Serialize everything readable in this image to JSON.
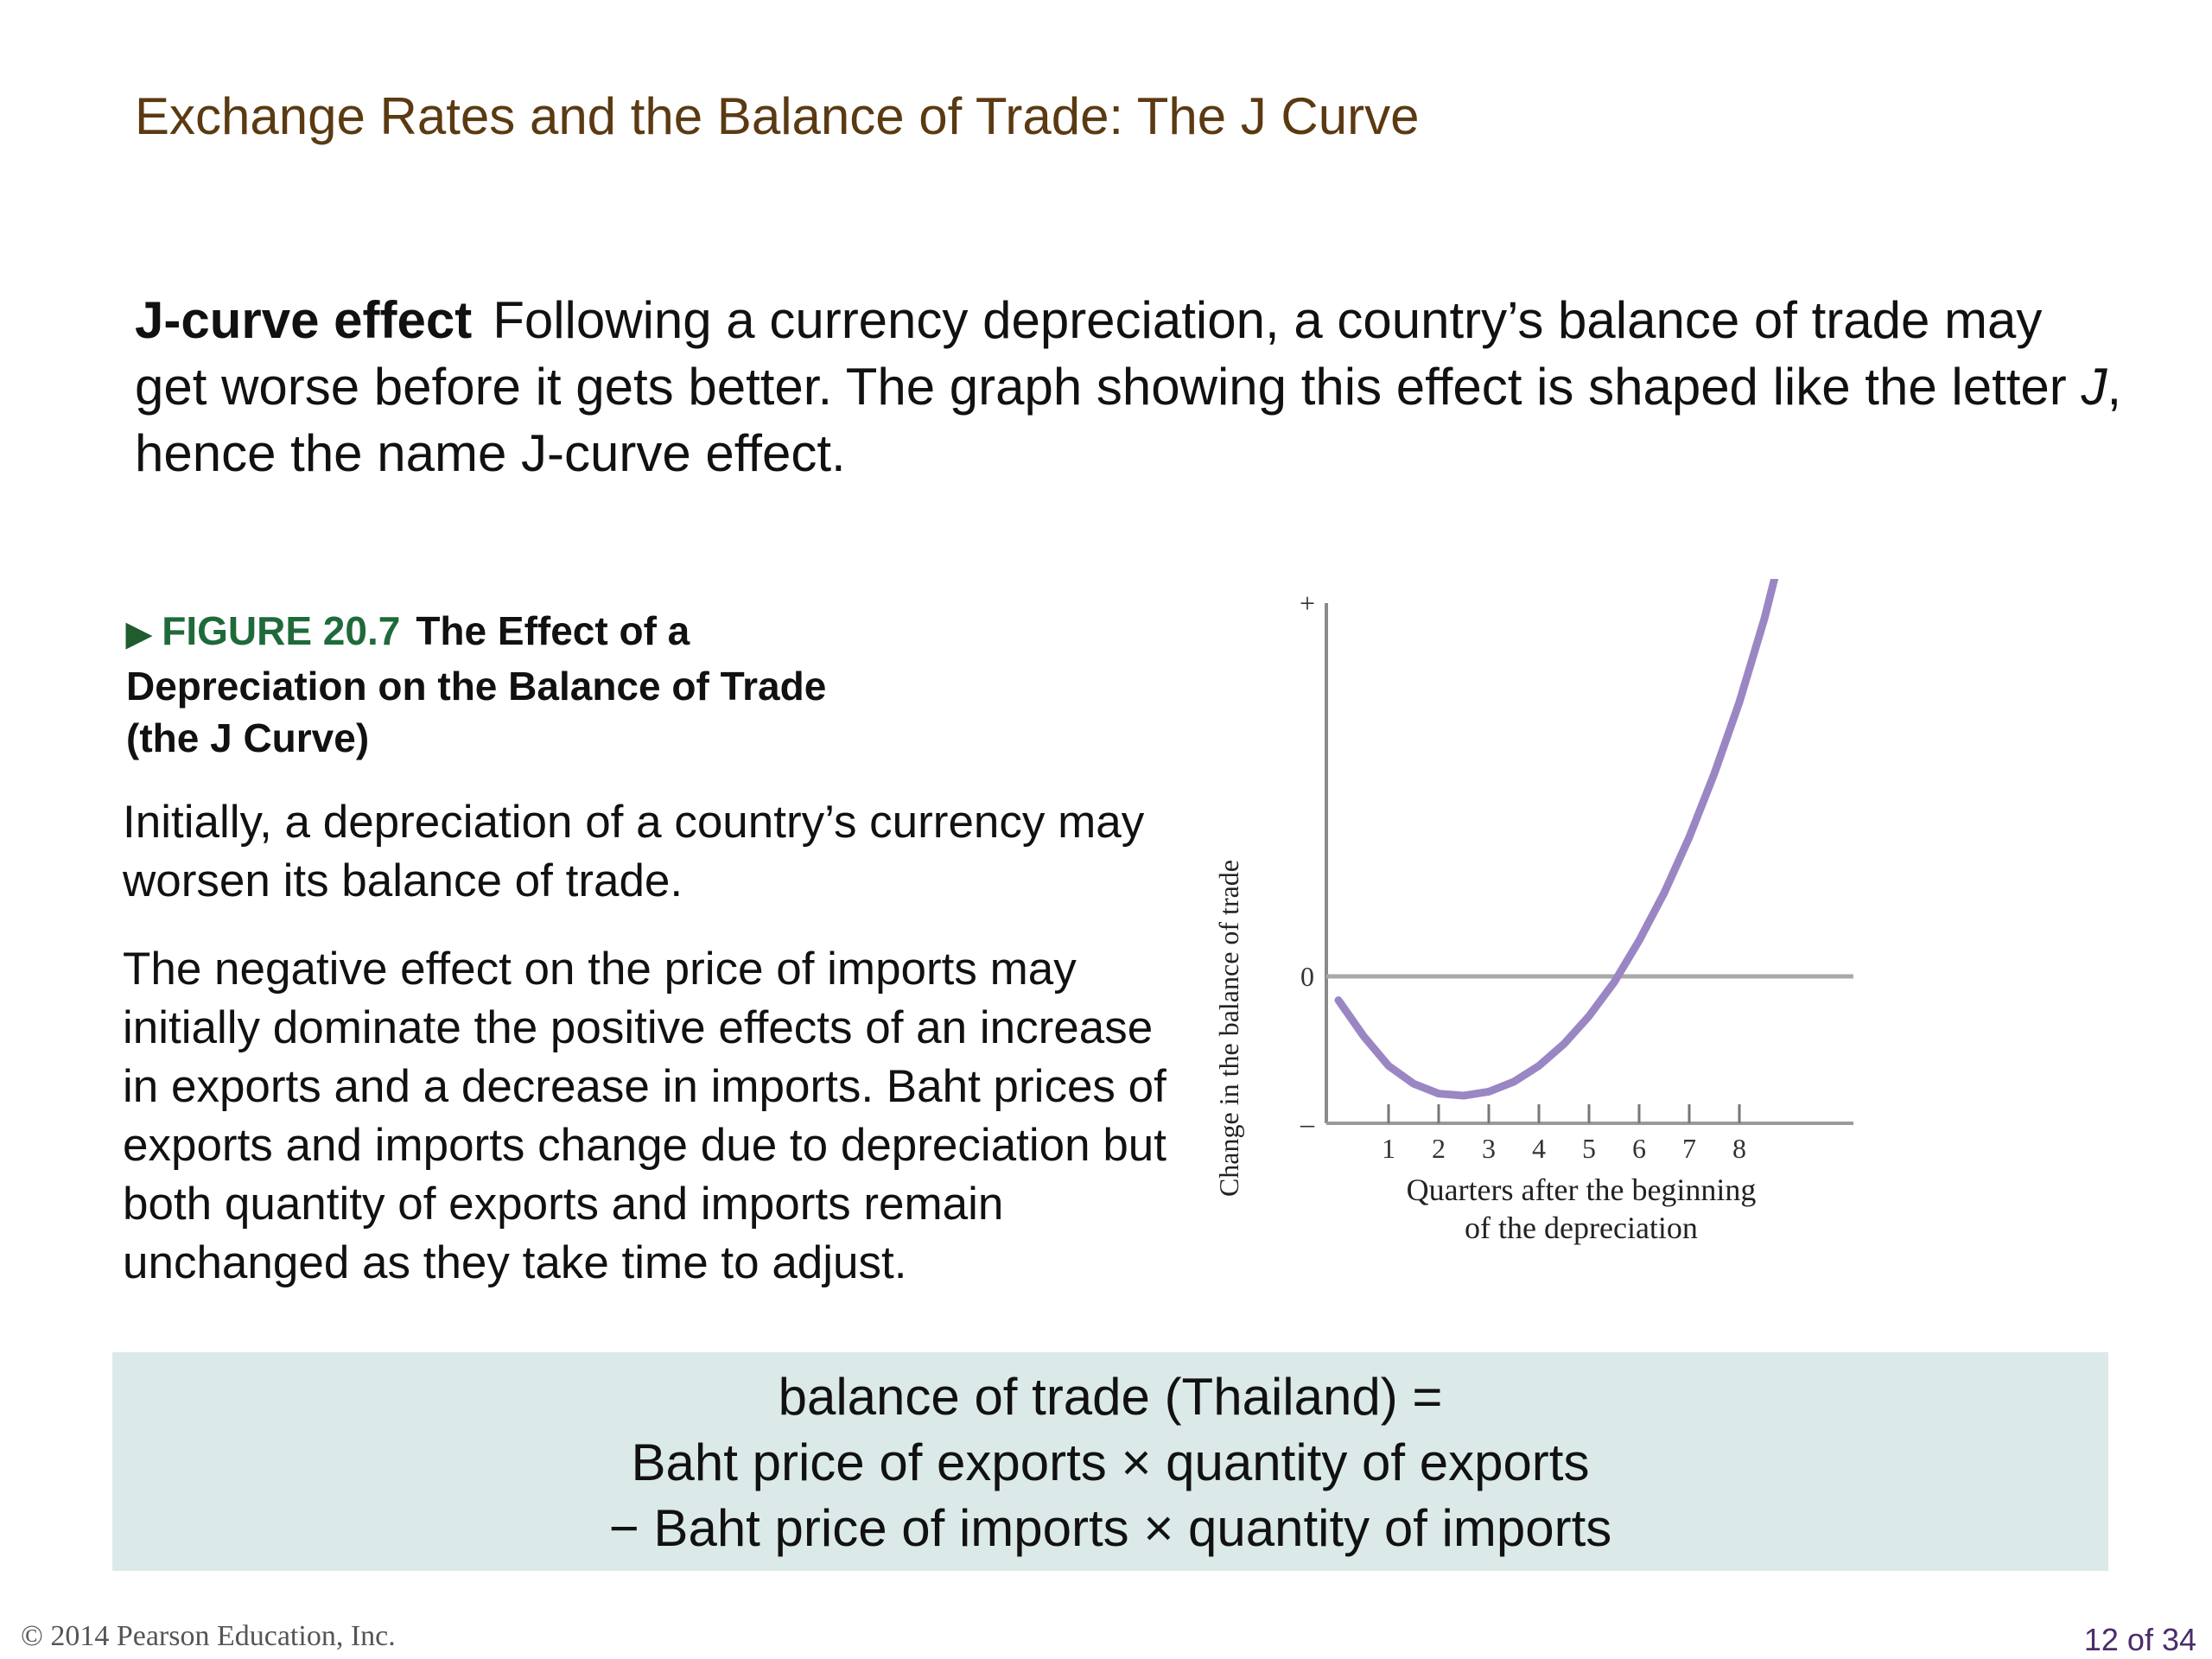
{
  "slide": {
    "title": "Exchange Rates and the Balance of Trade: The J Curve",
    "definition_term": "J-curve effect",
    "definition_text_1": "Following a currency depreciation, a country’s balance of trade may get worse before it gets better. The graph showing this effect is shaped like the letter ",
    "definition_italic": "J",
    "definition_text_2": ", hence the name J-curve effect."
  },
  "figure": {
    "arrow": "▶",
    "number": "FIGURE 20.7",
    "title": "The Effect of a Depreciation on the Balance of Trade (the J Curve)",
    "para1": "Initially, a depreciation of a country’s currency may worsen its balance of trade.",
    "para2": "The negative effect on the price of imports may initially dominate the positive effects of an increase in exports and a decrease in imports. Baht prices of exports and imports change due to depreciation but both quantity of exports and imports remain unchanged as they take time to adjust."
  },
  "chart_data": {
    "type": "line",
    "title": "",
    "xlabel": "Quarters after the beginning of the depreciation",
    "xlabel_line1": "Quarters after the beginning",
    "xlabel_line2": "of the depreciation",
    "ylabel": "Change in the balance of trade",
    "x_ticks": [
      "1",
      "2",
      "3",
      "4",
      "5",
      "6",
      "7",
      "8"
    ],
    "y_ticks": [
      "+",
      "0",
      "–"
    ],
    "xlim": [
      0,
      10
    ],
    "ylim": [
      -1,
      2.4
    ],
    "curve_color": "#9b86c4",
    "series": [
      {
        "x": [
          0,
          0.5,
          1,
          1.5,
          2,
          2.5,
          3,
          3.5,
          4,
          4.5,
          5,
          5.5,
          6,
          6.5,
          7,
          7.5,
          8,
          8.5,
          8.8
        ],
        "y": [
          -0.12,
          -0.3,
          -0.45,
          -0.54,
          -0.59,
          -0.6,
          -0.58,
          -0.53,
          -0.45,
          -0.34,
          -0.2,
          -0.03,
          0.18,
          0.42,
          0.7,
          1.02,
          1.38,
          1.8,
          2.1
        ]
      }
    ]
  },
  "formula": {
    "line1": "balance of trade (Thailand) =",
    "line2": "Baht price of exports × quantity of exports",
    "line3": "− Baht price of imports × quantity of imports"
  },
  "footer": {
    "copyright": "© 2014 Pearson Education, Inc.",
    "page": "12 of 34"
  }
}
